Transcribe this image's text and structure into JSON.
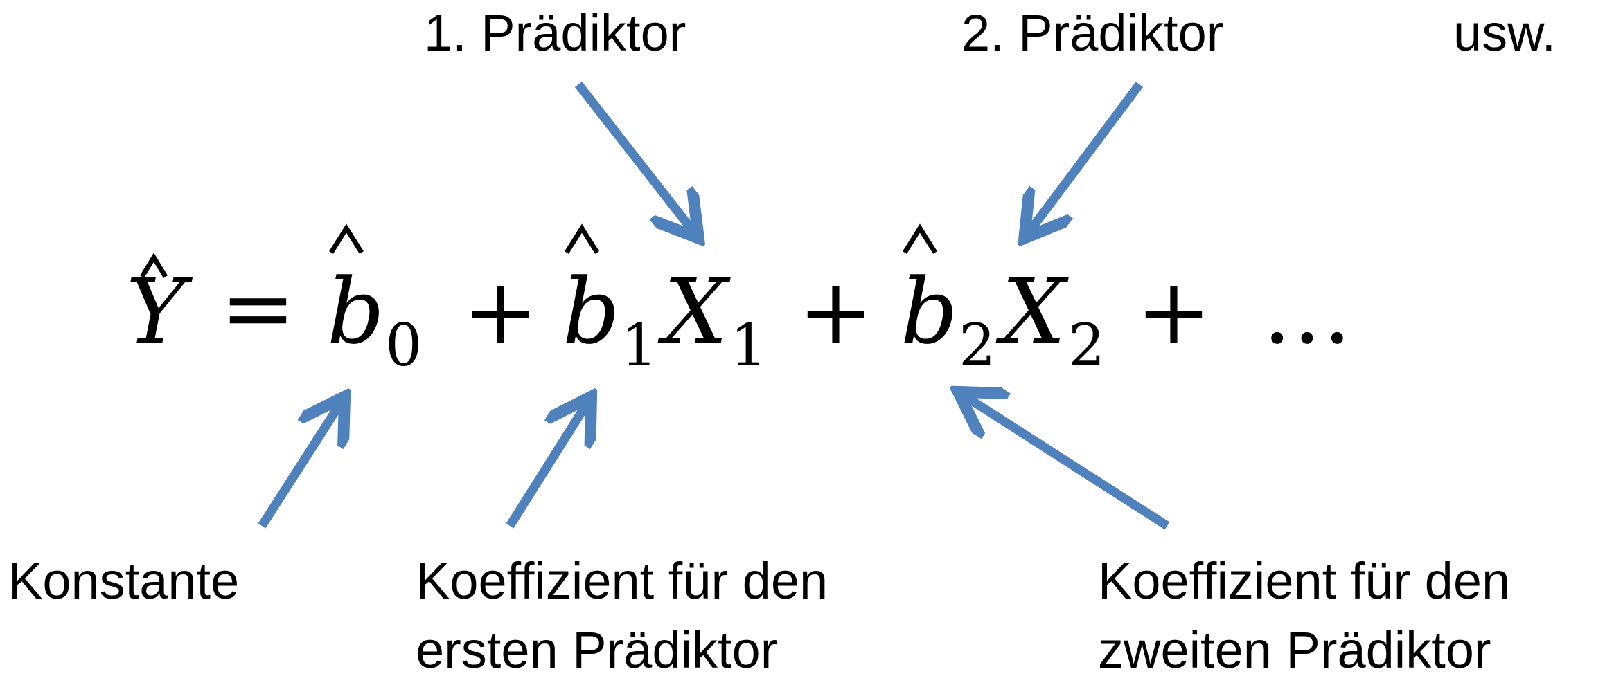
{
  "labels": {
    "pred1": "1. Prädiktor",
    "pred2": "2. Prädiktor",
    "etc": "usw.",
    "constant": "Konstante",
    "coef1": "Koeffizient für den\nersten Prädiktor",
    "coef2": "Koeffizient für den\nzweiten Prädiktor"
  },
  "equation": {
    "lhs": "Y",
    "equals": "=",
    "b": "b",
    "x": "X",
    "plus": "+",
    "ellipsis": "…",
    "sub0": "0",
    "sub1": "1",
    "sub2": "2"
  },
  "colors": {
    "arrow": "#4F81BD",
    "text": "#000000"
  }
}
